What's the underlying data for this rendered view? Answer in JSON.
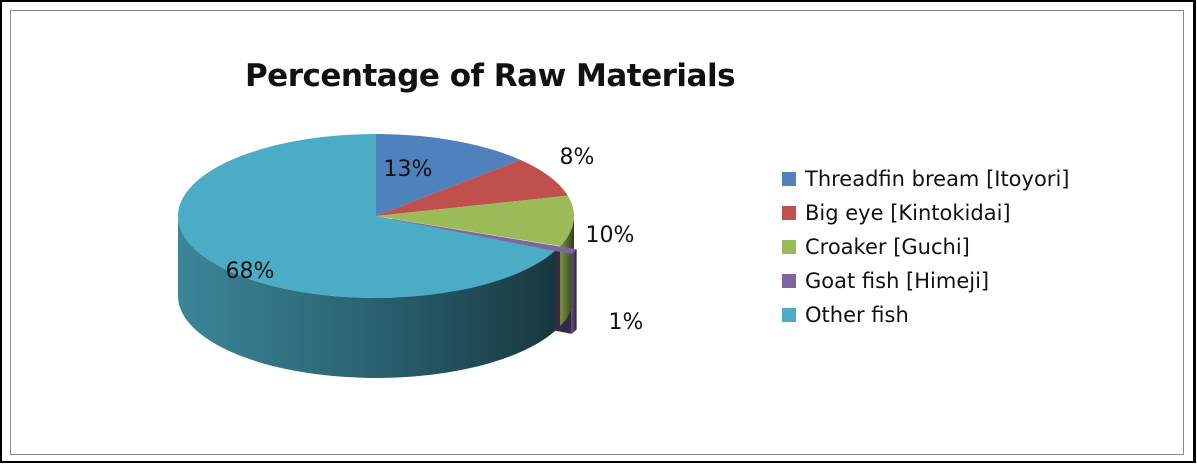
{
  "chart_data": {
    "type": "pie",
    "title": "Percentage of Raw Materials",
    "categories": [
      "Threadfin bream [Itoyori]",
      "Big eye  [Kintokidai]",
      "Croaker [Guchi]",
      "Goat fish [Himeji]",
      "Other fish"
    ],
    "values": [
      13,
      8,
      10,
      1,
      68
    ],
    "labels": [
      "13%",
      "8%",
      "10%",
      "1%",
      "68%"
    ],
    "colors": [
      "#4F81BD",
      "#C0504D",
      "#9BBB59",
      "#8064A2",
      "#4BACC6"
    ],
    "legend_position": "right",
    "style": "3d-pie"
  }
}
